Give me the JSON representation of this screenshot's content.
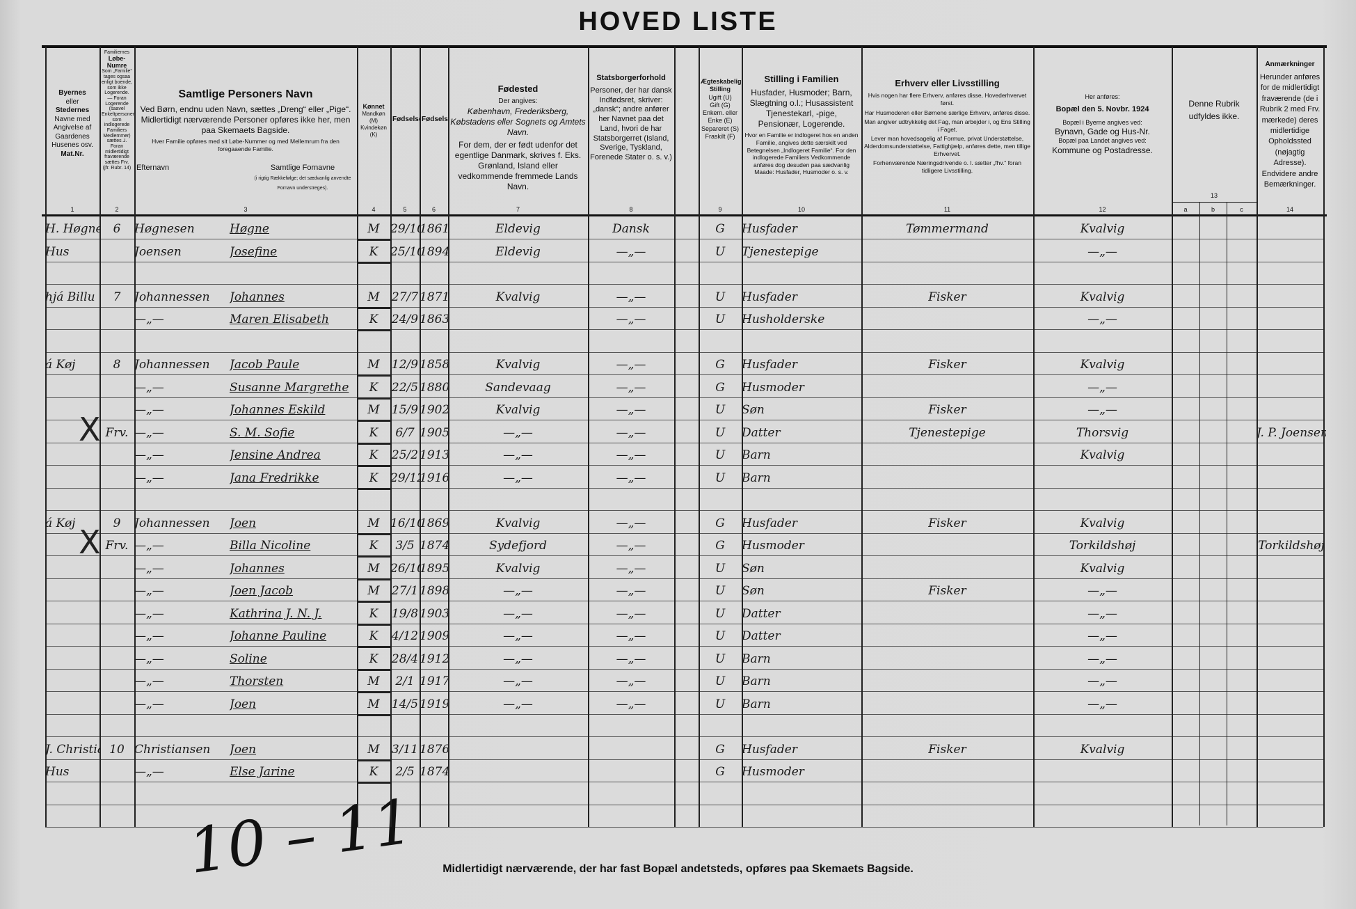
{
  "title": "HOVED LISTE",
  "headers": {
    "c1": {
      "l1": "Byernes",
      "l2": "eller",
      "l3": "Stedernes",
      "l4": "Navne med Angivelse af Gaardenes Husenes osv.",
      "l5": "Mat.Nr.",
      "num": "1"
    },
    "c2": {
      "l1": "Familiernes",
      "l2": "Løbe-Numre",
      "l3": "Som „Familie“ tages ogsaa enligt boende, som ikke Logerende. — Foran Logerende (saavel Enkeltpersoner som indlogerede Familiers Medlemmer) sættes ⅃. Foran midlertidigt fraværende sættes Frv. (jfr. Rubr. 14)",
      "num": "2"
    },
    "c3": {
      "title": "Samtlige Personers Navn",
      "l1": "Ved Børn, endnu uden Navn, sættes „Dreng“ eller „Pige“.",
      "l2": "Midlertidigt nærværende Personer opføres ikke her, men paa Skemaets Bagside.",
      "l3": "Hver Familie opføres med sit Løbe-Nummer og med Mellemrum fra den foregaaende Familie.",
      "sur": "Efternavn",
      "given": "Samtlige Fornavne",
      "given_note": "(i rigtig Rækkefølge; det sædvanlig anvendte Fornavn understreges).",
      "num": "3"
    },
    "c4": {
      "title": "Kønnet",
      "l1": "Mandkøn (M)",
      "l2": "Kvindekøn (K)",
      "num": "4"
    },
    "c5": {
      "title": "Fødselsdag",
      "num": "5"
    },
    "c6": {
      "title": "Fødselsaar",
      "num": "6"
    },
    "c7": {
      "title": "Fødested",
      "l1": "Der angives:",
      "l2": "København, Frederiksberg, Købstadens eller Sognets og Amtets Navn.",
      "l3": "For dem, der er født udenfor det egentlige Danmark, skrives f. Eks. Grønland, Island eller vedkommende fremmede Lands Navn.",
      "num": "7"
    },
    "c8": {
      "title": "Statsborgerforhold",
      "l1": "Personer, der har dansk Indfødsret, skriver: „dansk“; andre anfører her Navnet paa det Land, hvori de har Statsborgerret (Island, Sverige, Tyskland, Forenede Stater o. s. v.)",
      "num": "8"
    },
    "c9": {
      "title": "Ægteskabelig Stilling",
      "l1": "Ugift (U)",
      "l2": "Gift (G)",
      "l3": "Enkem. eller Enke (E)",
      "l4": "Separeret (S)",
      "l5": "Fraskilt (F)",
      "num": "9"
    },
    "c10": {
      "title": "Stilling i Familien",
      "l1": "Husfader, Husmoder; Barn, Slægtning o.l.; Husassistent Tjenestekarl, -pige, Pensionær, Logerende.",
      "l2": "Hvor en Familie er indlogeret hos en anden Familie, angives dette særskilt ved Betegnelsen „Indlogeret Familie“. For den indlogerede Familiers Vedkommende anføres dog desuden paa sædvanlig Maade: Husfader, Husmoder o. s. v.",
      "num": "10"
    },
    "c11": {
      "title": "Erhverv eller Livsstilling",
      "l1": "Hvis nogen har flere Erhverv, anføres disse, Hovederhvervet først.",
      "l2": "Har Husmoderen eller Børnene særlige Erhverv, anføres disse.",
      "l3": "Man angiver udtrykkelig det Fag, man arbejder i, og Ens Stilling i Faget.",
      "l4": "Lever man hovedsagelig af Formue, privat Understøttelse, Alderdomsunderstøttelse, Fattighjælp, anføres dette, men tillige Erhvervet.",
      "l5": "Forhenværende Næringsdrivende o. l. sætter „fhv.“ foran tidligere Livsstilling.",
      "num": "11"
    },
    "c12": {
      "l1": "Her anføres:",
      "title": "Bopæl den 5. Novbr. 1924",
      "l2": "Bopæl i Byerne angives ved:",
      "l3": "Bynavn, Gade og Hus-Nr.",
      "l4": "Bopæl paa Landet angives ved:",
      "l5": "Kommune og Postadresse.",
      "num": "12"
    },
    "c13": {
      "l1": "Denne Rubrik udfyldes ikke.",
      "num": "13",
      "a": "a",
      "b": "b",
      "c": "c"
    },
    "c14": {
      "title": "Anmærkninger",
      "l1": "Herunder anføres for de midlertidigt fraværende (de i Rubrik 2 med Frv. mærkede) deres midlertidige Opholdssted (nøjagtig Adresse). Endvidere andre Bemærkninger.",
      "num": "14"
    }
  },
  "rows": [
    {
      "place": "H. Høgnesen",
      "fam": "6",
      "sur": "Høgnesen",
      "given": "Høgne",
      "sex": "M",
      "day": "29/10",
      "year": "1861",
      "born": "Eldevig",
      "citizen": "Dansk",
      "marital": "G",
      "position": "Husfader",
      "occupation": "Tømmermand",
      "residence": "Kvalvig",
      "remark": ""
    },
    {
      "place": "Hus",
      "fam": "",
      "sur": "Joensen",
      "given": "Josefine",
      "sex": "K",
      "day": "25/10",
      "year": "1894",
      "born": "Eldevig",
      "citizen": "—„—",
      "marital": "U",
      "position": "Tjenestepige",
      "occupation": "",
      "residence": "—„—",
      "remark": ""
    },
    {},
    {
      "place": "hjá Billu",
      "fam": "7",
      "sur": "Johannessen",
      "given": "Johannes",
      "sex": "M",
      "day": "27/7",
      "year": "1871",
      "born": "Kvalvig",
      "citizen": "—„—",
      "marital": "U",
      "position": "Husfader",
      "occupation": "Fisker",
      "residence": "Kvalvig",
      "remark": ""
    },
    {
      "place": "",
      "fam": "",
      "sur": "—„—",
      "given": "Maren Elisabeth",
      "sex": "K",
      "day": "24/9",
      "year": "1863",
      "born": "",
      "citizen": "—„—",
      "marital": "U",
      "position": "Husholderske",
      "occupation": "",
      "residence": "—„—",
      "remark": ""
    },
    {},
    {
      "place": "á Køj",
      "fam": "8",
      "sur": "Johannessen",
      "given": "Jacob Paule",
      "sex": "M",
      "day": "12/9",
      "year": "1858",
      "born": "Kvalvig",
      "citizen": "—„—",
      "marital": "G",
      "position": "Husfader",
      "occupation": "Fisker",
      "residence": "Kvalvig",
      "remark": ""
    },
    {
      "place": "",
      "fam": "",
      "sur": "—„—",
      "given": "Susanne Margrethe",
      "sex": "K",
      "day": "22/5",
      "year": "1880",
      "born": "Sandevaag",
      "citizen": "—„—",
      "marital": "G",
      "position": "Husmoder",
      "occupation": "",
      "residence": "—„—",
      "remark": ""
    },
    {
      "place": "",
      "fam": "",
      "sur": "—„—",
      "given": "Johannes Eskild",
      "sex": "M",
      "day": "15/9",
      "year": "1902",
      "born": "Kvalvig",
      "citizen": "—„—",
      "marital": "U",
      "position": "Søn",
      "occupation": "Fisker",
      "residence": "—„—",
      "remark": ""
    },
    {
      "mark": "X",
      "place": "",
      "fam": "Frv.",
      "sur": "—„—",
      "given": "S. M. Sofie",
      "sex": "K",
      "day": "6/7",
      "year": "1905",
      "born": "—„—",
      "citizen": "—„—",
      "marital": "U",
      "position": "Datter",
      "occupation": "Tjenestepige",
      "residence": "Thorsvig",
      "remark": "J. P. Joensen"
    },
    {
      "place": "",
      "fam": "",
      "sur": "—„—",
      "given": "Jensine Andrea",
      "sex": "K",
      "day": "25/2",
      "year": "1913",
      "born": "—„—",
      "citizen": "—„—",
      "marital": "U",
      "position": "Barn",
      "occupation": "",
      "residence": "Kvalvig",
      "remark": ""
    },
    {
      "place": "",
      "fam": "",
      "sur": "—„—",
      "given": "Jana Fredrikke",
      "sex": "K",
      "day": "29/12",
      "year": "1916",
      "born": "—„—",
      "citizen": "—„—",
      "marital": "U",
      "position": "Barn",
      "occupation": "",
      "residence": "",
      "remark": ""
    },
    {},
    {
      "place": "á Køj",
      "fam": "9",
      "sur": "Johannessen",
      "given": "Joen",
      "sex": "M",
      "day": "16/10",
      "year": "1869",
      "born": "Kvalvig",
      "citizen": "—„—",
      "marital": "G",
      "position": "Husfader",
      "occupation": "Fisker",
      "residence": "Kvalvig",
      "remark": ""
    },
    {
      "mark": "X",
      "place": "",
      "fam": "Frv.",
      "sur": "—„—",
      "given": "Billa Nicoline",
      "sex": "K",
      "day": "3/5",
      "year": "1874",
      "born": "Sydefjord",
      "citizen": "—„—",
      "marital": "G",
      "position": "Husmoder",
      "occupation": "",
      "residence": "Torkildshøj",
      "remark": "Torkildshøj"
    },
    {
      "place": "",
      "fam": "",
      "sur": "—„—",
      "given": "Johannes",
      "sex": "M",
      "day": "26/10",
      "year": "1895",
      "born": "Kvalvig",
      "citizen": "—„—",
      "marital": "U",
      "position": "Søn",
      "occupation": "",
      "residence": "Kvalvig",
      "remark": ""
    },
    {
      "place": "",
      "fam": "",
      "sur": "—„—",
      "given": "Joen Jacob",
      "sex": "M",
      "day": "27/1",
      "year": "1898",
      "born": "—„—",
      "citizen": "—„—",
      "marital": "U",
      "position": "Søn",
      "occupation": "Fisker",
      "residence": "—„—",
      "remark": ""
    },
    {
      "place": "",
      "fam": "",
      "sur": "—„—",
      "given": "Kathrina J. N. J.",
      "sex": "K",
      "day": "19/8",
      "year": "1903",
      "born": "—„—",
      "citizen": "—„—",
      "marital": "U",
      "position": "Datter",
      "occupation": "",
      "residence": "—„—",
      "remark": ""
    },
    {
      "place": "",
      "fam": "",
      "sur": "—„—",
      "given": "Johanne Pauline",
      "sex": "K",
      "day": "4/12",
      "year": "1909",
      "born": "—„—",
      "citizen": "—„—",
      "marital": "U",
      "position": "Datter",
      "occupation": "",
      "residence": "—„—",
      "remark": ""
    },
    {
      "place": "",
      "fam": "",
      "sur": "—„—",
      "given": "Soline",
      "sex": "K",
      "day": "28/4",
      "year": "1912",
      "born": "—„—",
      "citizen": "—„—",
      "marital": "U",
      "position": "Barn",
      "occupation": "",
      "residence": "—„—",
      "remark": ""
    },
    {
      "place": "",
      "fam": "",
      "sur": "—„—",
      "given": "Thorsten",
      "sex": "M",
      "day": "2/1",
      "year": "1917",
      "born": "—„—",
      "citizen": "—„—",
      "marital": "U",
      "position": "Barn",
      "occupation": "",
      "residence": "—„—",
      "remark": ""
    },
    {
      "place": "",
      "fam": "",
      "sur": "—„—",
      "given": "Joen",
      "sex": "M",
      "day": "14/5",
      "year": "1919",
      "born": "—„—",
      "citizen": "—„—",
      "marital": "U",
      "position": "Barn",
      "occupation": "",
      "residence": "—„—",
      "remark": ""
    },
    {},
    {
      "place": "J. Christiansen",
      "fam": "10",
      "sur": "Christiansen",
      "given": "Joen",
      "sex": "M",
      "day": "3/11",
      "year": "1876",
      "born": "",
      "citizen": "",
      "marital": "G",
      "position": "Husfader",
      "occupation": "Fisker",
      "residence": "Kvalvig",
      "remark": ""
    },
    {
      "place": "Hus",
      "fam": "",
      "sur": "—„—",
      "given": "Else Jarine",
      "sex": "K",
      "day": "2/5",
      "year": "1874",
      "born": "",
      "citizen": "",
      "marital": "G",
      "position": "Husmoder",
      "occupation": "",
      "residence": "",
      "remark": ""
    },
    {},
    {}
  ],
  "page_number": "10 – 11",
  "footer": "Midlertidigt nærværende, der har fast Bopæl     andetsteds, opføres paa Skemaets Bagside."
}
